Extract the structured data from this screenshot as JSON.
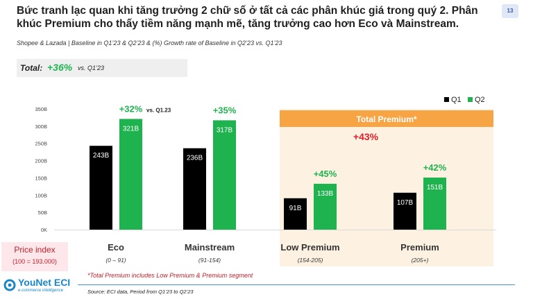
{
  "header": {
    "title": "Bức tranh lạc quan khi tăng trưởng 2 chữ số ở tất cả các phân khúc giá trong quý 2. Phân khúc Premium cho thấy tiềm năng mạnh mẽ, tăng trưởng cao hơn Eco và Mainstream.",
    "page_number": "13",
    "subtitle": "Shopee & Lazada | Baseline in Q1’23 & Q2’23 & (%) Growth rate of Baseline in Q2’23 vs. Q1’23"
  },
  "total": {
    "label": "Total:",
    "value": "+36%",
    "comparison": "vs. Q1’23"
  },
  "price_index": {
    "title": "Price index",
    "value": "(100 = 193.000)"
  },
  "logo": {
    "brand": "YouNet ECI",
    "tagline": "e-commerce intelligence"
  },
  "footnote": "*Total Premium includes Low Premium & Premium segment",
  "source": "Source: ECI data, Period from Q1’23 to Q2’23",
  "colors": {
    "q1": "#000000",
    "q2": "#1fb34f",
    "growth": "#1fb34f",
    "premium_band": "#f7a445",
    "premium_bg": "#fdf1e2",
    "premium_growth": "#e0202a"
  },
  "chart_data": {
    "type": "bar",
    "categories": [
      "Eco",
      "Mainstream",
      "Low Premium",
      "Premium"
    ],
    "category_ranges": [
      "(0 – 91)",
      "(91-154)",
      "(154-205)",
      "(205+)"
    ],
    "series": [
      {
        "name": "Q1",
        "values": [
          243,
          236,
          91,
          107
        ],
        "labels": [
          "243B",
          "236B",
          "91B",
          "107B"
        ]
      },
      {
        "name": "Q2",
        "values": [
          321,
          317,
          133,
          151
        ],
        "labels": [
          "321B",
          "317B",
          "133B",
          "151B"
        ]
      }
    ],
    "growth_labels": [
      "+32%",
      "+35%",
      "+45%",
      "+42%"
    ],
    "growth_note": "vs. Q1.23",
    "ylim": [
      0,
      350
    ],
    "yticks": [
      0,
      50,
      100,
      150,
      200,
      250,
      300,
      350
    ],
    "ytick_labels": [
      "0K",
      "50B",
      "100B",
      "150B",
      "200B",
      "250B",
      "300B",
      "350B"
    ],
    "legend_position": "top-right",
    "group_band": {
      "label": "Total Premium*",
      "growth": "+43%"
    }
  }
}
